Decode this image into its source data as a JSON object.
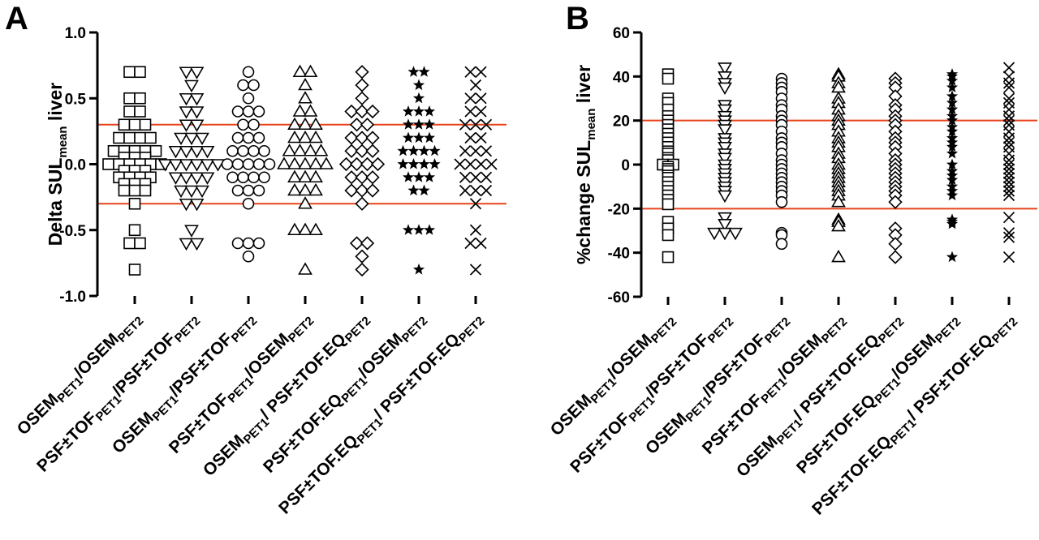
{
  "chart_data": [
    {
      "type": "scatter",
      "panel_label": "A",
      "ylabel": "Delta SUL",
      "ylabel_sub": "mean",
      "ylabel_suffix": " liver",
      "ylim": [
        -1.0,
        1.0
      ],
      "yticks": [
        "1.0",
        "0.5",
        "0.0",
        "-0.5",
        "-1.0"
      ],
      "ytick_values": [
        1.0,
        0.5,
        0.0,
        -0.5,
        -1.0
      ],
      "ref_lines": [
        0.3,
        -0.3
      ],
      "ref_color": "#e8441c",
      "categories": [
        {
          "main1": "OSEM",
          "sub1": "PET1",
          "main2": "/OSEM",
          "sub2": "PET2",
          "marker": "square-open"
        },
        {
          "main1": "PSF±TOF",
          "sub1": "PET1",
          "main2": "/PSF±TOF",
          "sub2": "PET2",
          "marker": "tri-down-open"
        },
        {
          "main1": "OSEM",
          "sub1": "PET1",
          "main2": "/PSF±TOF",
          "sub2": "PET2",
          "marker": "circle-open"
        },
        {
          "main1": "PSF±TOF",
          "sub1": "PET1",
          "main2": "/OSEM",
          "sub2": "PET2",
          "marker": "tri-up-open"
        },
        {
          "main1": "OSEM",
          "sub1": "PET1",
          "main2": "/ PSF±TOF.EQ",
          "sub2": "PET2",
          "marker": "diamond-open"
        },
        {
          "main1": "PSF±TOF.EQ",
          "sub1": "PET1",
          "main2": "/OSEM",
          "sub2": "PET2",
          "marker": "star-filled"
        },
        {
          "main1": "PSF±TOF.EQ",
          "sub1": "PET1",
          "main2": "/ PSF±TOF.EQ",
          "sub2": "PET2",
          "marker": "x-cross"
        }
      ],
      "series": [
        {
          "values": [
            0.7,
            0.7,
            0.5,
            0.5,
            0.4,
            0.4,
            0.3,
            0.3,
            0.3,
            0.2,
            0.2,
            0.2,
            0.2,
            0.1,
            0.1,
            0.1,
            0.1,
            0.1,
            0.05,
            0.05,
            0.05,
            0,
            0,
            0,
            0,
            0,
            0,
            -0.05,
            -0.05,
            -0.05,
            -0.1,
            -0.1,
            -0.1,
            -0.1,
            -0.15,
            -0.15,
            -0.15,
            -0.2,
            -0.2,
            -0.2,
            -0.3,
            -0.5,
            -0.6,
            -0.6,
            -0.8
          ]
        },
        {
          "values": [
            0.7,
            0.7,
            0.6,
            0.5,
            0.5,
            0.4,
            0.4,
            0.3,
            0.3,
            0.2,
            0.2,
            0.2,
            0.1,
            0.1,
            0.1,
            0.1,
            0,
            0,
            0,
            0,
            0,
            0,
            -0.1,
            -0.1,
            -0.1,
            -0.1,
            -0.2,
            -0.2,
            -0.2,
            -0.3,
            -0.3,
            -0.5,
            -0.6,
            -0.6
          ]
        },
        {
          "values": [
            0.7,
            0.6,
            0.6,
            0.5,
            0.4,
            0.4,
            0.4,
            0.3,
            0.3,
            0.2,
            0.2,
            0.2,
            0.1,
            0.1,
            0.1,
            0.1,
            0,
            0,
            0,
            0,
            0,
            -0.1,
            -0.1,
            -0.1,
            -0.1,
            -0.2,
            -0.2,
            -0.2,
            -0.3,
            -0.6,
            -0.6,
            -0.6,
            -0.7
          ]
        },
        {
          "values": [
            0.7,
            0.7,
            0.6,
            0.5,
            0.4,
            0.4,
            0.3,
            0.3,
            0.3,
            0.2,
            0.2,
            0.2,
            0.1,
            0.1,
            0.1,
            0.1,
            0,
            0,
            0,
            0,
            0,
            -0.1,
            -0.1,
            -0.1,
            -0.2,
            -0.2,
            -0.2,
            -0.3,
            -0.5,
            -0.5,
            -0.5,
            -0.8
          ]
        },
        {
          "values": [
            0.7,
            0.6,
            0.5,
            0.4,
            0.4,
            0.4,
            0.3,
            0.3,
            0.2,
            0.2,
            0.2,
            0.1,
            0.1,
            0.1,
            0,
            0,
            0,
            0,
            -0.1,
            -0.1,
            -0.1,
            -0.2,
            -0.2,
            -0.2,
            -0.3,
            -0.6,
            -0.6,
            -0.7,
            -0.8
          ]
        },
        {
          "values": [
            0.7,
            0.7,
            0.6,
            0.5,
            0.4,
            0.4,
            0.4,
            0.3,
            0.3,
            0.3,
            0.2,
            0.2,
            0.2,
            0.1,
            0.1,
            0.1,
            0.1,
            0,
            0,
            0,
            0,
            -0.1,
            -0.1,
            -0.1,
            -0.2,
            -0.2,
            -0.5,
            -0.5,
            -0.5,
            -0.8
          ]
        },
        {
          "values": [
            0.7,
            0.7,
            0.6,
            0.5,
            0.5,
            0.4,
            0.4,
            0.3,
            0.3,
            0.3,
            0.2,
            0.2,
            0.1,
            0.1,
            0.1,
            0,
            0,
            0,
            0,
            -0.1,
            -0.1,
            -0.1,
            -0.2,
            -0.2,
            -0.2,
            -0.3,
            -0.5,
            -0.6,
            -0.6,
            -0.8
          ]
        }
      ]
    },
    {
      "type": "scatter",
      "panel_label": "B",
      "ylabel": "%change SUL",
      "ylabel_sub": "mean",
      "ylabel_suffix": " liver",
      "ylim": [
        -60,
        60
      ],
      "yticks": [
        "60",
        "40",
        "20",
        "0",
        "-20",
        "-40",
        "-60"
      ],
      "ytick_values": [
        60,
        40,
        20,
        0,
        -20,
        -40,
        -60
      ],
      "ref_lines": [
        20,
        -20
      ],
      "ref_color": "#e8441c",
      "categories": [
        {
          "main1": "OSEM",
          "sub1": "PET1",
          "main2": "/OSEM",
          "sub2": "PET2",
          "marker": "square-open"
        },
        {
          "main1": "PSF±TOF",
          "sub1": "PET1",
          "main2": "/PSF±TOF",
          "sub2": "PET2",
          "marker": "tri-down-open"
        },
        {
          "main1": "OSEM",
          "sub1": "PET1",
          "main2": "/PSF±TOF",
          "sub2": "PET2",
          "marker": "circle-open"
        },
        {
          "main1": "PSF±TOF",
          "sub1": "PET1",
          "main2": "/OSEM",
          "sub2": "PET2",
          "marker": "tri-up-open"
        },
        {
          "main1": "OSEM",
          "sub1": "PET1",
          "main2": "/ PSF±TOF.EQ",
          "sub2": "PET2",
          "marker": "diamond-open"
        },
        {
          "main1": "PSF±TOF.EQ",
          "sub1": "PET1",
          "main2": "/OSEM",
          "sub2": "PET2",
          "marker": "star-filled"
        },
        {
          "main1": "PSF±TOF.EQ",
          "sub1": "PET1",
          "main2": "/ PSF±TOF.EQ",
          "sub2": "PET2",
          "marker": "x-cross"
        }
      ],
      "series": [
        {
          "values": [
            41,
            39,
            30,
            28,
            25,
            22,
            20,
            18,
            16,
            14,
            12,
            10,
            8,
            6,
            5,
            3,
            2,
            0,
            0,
            -1,
            -2,
            -3,
            -5,
            -6,
            -8,
            -10,
            -12,
            -14,
            -16,
            -18,
            -26,
            -29,
            -32,
            -42
          ]
        },
        {
          "values": [
            44,
            40,
            37,
            35,
            27,
            25,
            22,
            20,
            18,
            16,
            12,
            10,
            8,
            5,
            3,
            0,
            -2,
            -4,
            -6,
            -8,
            -10,
            -12,
            -14,
            -24,
            -27,
            -31,
            -31,
            -31
          ]
        },
        {
          "values": [
            39,
            37,
            35,
            33,
            30,
            27,
            25,
            22,
            20,
            18,
            15,
            12,
            10,
            8,
            5,
            2,
            0,
            -2,
            -4,
            -6,
            -8,
            -10,
            -12,
            -14,
            -17,
            -31,
            -32,
            -36
          ]
        },
        {
          "values": [
            41,
            40,
            37,
            35,
            30,
            28,
            25,
            22,
            20,
            18,
            15,
            12,
            10,
            8,
            5,
            3,
            0,
            -2,
            -4,
            -6,
            -8,
            -10,
            -12,
            -14,
            -17,
            -25,
            -26,
            -28,
            -42
          ]
        },
        {
          "values": [
            39,
            37,
            35,
            31,
            27,
            25,
            22,
            20,
            18,
            15,
            12,
            10,
            8,
            5,
            2,
            0,
            -2,
            -4,
            -6,
            -8,
            -10,
            -12,
            -14,
            -17,
            -29,
            -32,
            -36,
            -42
          ]
        },
        {
          "values": [
            41,
            40,
            38,
            35,
            31,
            28,
            25,
            22,
            20,
            17,
            15,
            12,
            10,
            8,
            5,
            0,
            -3,
            -5,
            -7,
            -10,
            -12,
            -14,
            -25,
            -27,
            -26,
            -42
          ]
        },
        {
          "values": [
            44,
            40,
            37,
            35,
            30,
            28,
            25,
            22,
            20,
            18,
            15,
            12,
            10,
            8,
            5,
            2,
            0,
            -2,
            -4,
            -6,
            -8,
            -10,
            -12,
            -14,
            -24,
            -31,
            -33,
            -42
          ]
        }
      ]
    }
  ]
}
